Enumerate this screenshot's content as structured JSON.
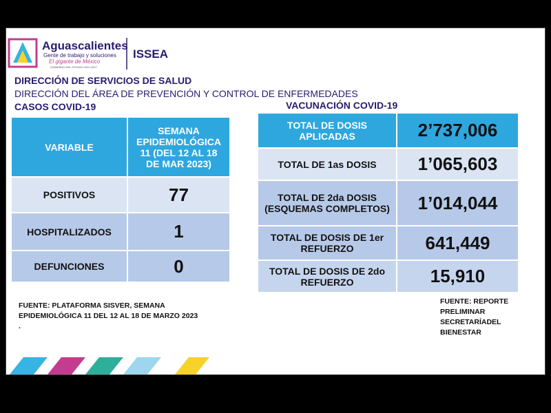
{
  "header": {
    "logo": {
      "name": "Aguascalientes",
      "tagline": "Gente de trabajo y soluciones",
      "slogan": "El gigante de México",
      "government": "GOBIERNO DEL ESTADO 2022-2027"
    },
    "institute": "ISSEA",
    "direction": "DIRECCIÓN DE SERVICIOS DE SALUD",
    "area": "DIRECCIÓN DEL ÁREA DE PREVENCIÓN Y CONTROL DE ENFERMEDADES"
  },
  "cases": {
    "title": "CASOS COVID-19",
    "columns": [
      "VARIABLE",
      "SEMANA EPIDEMIOLÓGICA 11 (DEL 12 AL 18 DE MAR 2023)"
    ],
    "rows": [
      [
        "POSITIVOS",
        77
      ],
      [
        "HOSPITALIZADOS",
        1
      ],
      [
        "DEFUNCIONES",
        0
      ]
    ],
    "source": "FUENTE: PLATAFORMA SISVER, SEMANA EPIDEMIOLÓGICA 11 DEL 12 AL 18 DE MARZO 2023",
    "note": "."
  },
  "vaccination": {
    "title": "VACUNACIÓN COVID-19",
    "rows": [
      [
        "TOTAL DE DOSIS APLICADAS",
        "2’737,006"
      ],
      [
        "TOTAL DE 1as DOSIS",
        "1’065,603"
      ],
      [
        "TOTAL DE 2da DOSIS (ESQUEMAS COMPLETOS)",
        "1’014,044"
      ],
      [
        "TOTAL DE DOSIS DE 1er REFUERZO",
        "641,449"
      ],
      [
        "TOTAL DE DOSIS DE 2do REFUERZO",
        "15,910"
      ]
    ],
    "source": "FUENTE: REPORTE PRELIMINAR SECRETARÍADEL BIENESTAR"
  }
}
